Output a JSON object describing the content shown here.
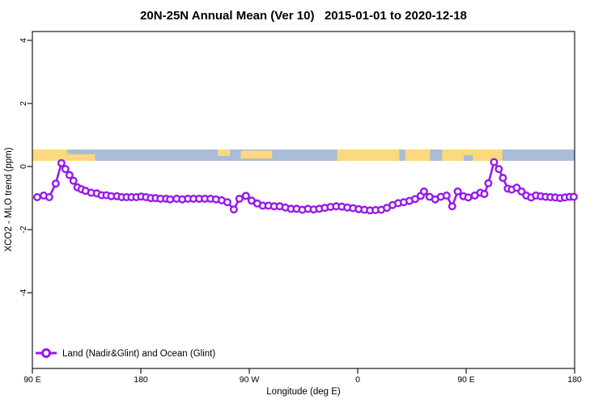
{
  "title": "20N-25N Annual Mean (Ver 10)   2015-01-01 to 2020-12-18",
  "axes": {
    "x": {
      "label": "Longitude (deg E)",
      "ticks": [
        {
          "lon": 90,
          "label": "90 E"
        },
        {
          "lon": 180,
          "label": "180"
        },
        {
          "lon": 270,
          "label": "90 W"
        },
        {
          "lon": 360,
          "label": "0"
        },
        {
          "lon": 450,
          "label": "90 E"
        },
        {
          "lon": 540,
          "label": "180"
        }
      ]
    },
    "y": {
      "label": "XCO2 - MLO trend (ppm)",
      "ticks": [
        {
          "value": 4,
          "label": "4"
        },
        {
          "value": 2,
          "label": "2"
        },
        {
          "value": 0,
          "label": "0"
        },
        {
          "value": -2,
          "label": "-2"
        },
        {
          "value": -4,
          "label": "-4"
        }
      ]
    }
  },
  "legend": {
    "label": "Land (Nadir&Glint) and Ocean (Glint)"
  },
  "colors": {
    "series": "#9719EC",
    "marker_fill": "#ffffff",
    "land": "#FCD87E",
    "ocean": "#A9BCD8",
    "axis": "#1a1a1a"
  },
  "chart_data": {
    "type": "line",
    "title": "20N-25N Annual Mean (Ver 10)   2015-01-01 to 2020-12-18",
    "xlabel": "Longitude (deg E)",
    "ylabel": "XCO2 - MLO trend (ppm)",
    "x_range": [
      90,
      540
    ],
    "y_range": [
      -6.4,
      4.28
    ],
    "x_tick_values": [
      90,
      180,
      270,
      360,
      450,
      540
    ],
    "y_tick_values": [
      4,
      2,
      0,
      -2,
      -4
    ],
    "grid": false,
    "legend_position": "bottom-left",
    "map_strip": {
      "comment": "land/ocean band for latitude 20N-25N drawn across the plot",
      "value_top": 0.54,
      "value_bottom": 0.18,
      "land_segments": [
        {
          "from": 90,
          "to": 119,
          "top": 0,
          "bottom": 1
        },
        {
          "from": 119,
          "to": 142,
          "top": 0.42,
          "bottom": 1
        },
        {
          "from": 244,
          "to": 254,
          "top": 0,
          "bottom": 0.55
        },
        {
          "from": 263,
          "to": 289,
          "top": 0.1,
          "bottom": 0.8
        },
        {
          "from": 343,
          "to": 394.5,
          "top": 0,
          "bottom": 1
        },
        {
          "from": 399.5,
          "to": 420,
          "top": 0,
          "bottom": 1
        },
        {
          "from": 430,
          "to": 480,
          "top": 0,
          "bottom": 1
        }
      ],
      "ocean_notches": [
        {
          "from": 448,
          "to": 455.5,
          "top": 0.5,
          "bottom": 1
        }
      ]
    },
    "series": [
      {
        "name": "Land (Nadir&Glint) and Ocean (Glint)",
        "marker": "open-circle",
        "color": "#9719EC",
        "points": [
          [
            94.0,
            -0.97
          ],
          [
            99.4,
            -0.92
          ],
          [
            104.0,
            -0.97
          ],
          [
            109.4,
            -0.54
          ],
          [
            114.1,
            0.11
          ],
          [
            117.4,
            -0.08
          ],
          [
            120.8,
            -0.27
          ],
          [
            124.1,
            -0.45
          ],
          [
            127.4,
            -0.66
          ],
          [
            130.8,
            -0.72
          ],
          [
            134.1,
            -0.77
          ],
          [
            138.8,
            -0.83
          ],
          [
            143.5,
            -0.85
          ],
          [
            147.5,
            -0.91
          ],
          [
            151.5,
            -0.91
          ],
          [
            155.5,
            -0.94
          ],
          [
            160.2,
            -0.94
          ],
          [
            164.2,
            -0.97
          ],
          [
            168.2,
            -0.97
          ],
          [
            172.2,
            -0.97
          ],
          [
            176.3,
            -0.97
          ],
          [
            180.3,
            -0.95
          ],
          [
            184.3,
            -0.97
          ],
          [
            188.3,
            -1.0
          ],
          [
            192.3,
            -1.0
          ],
          [
            196.3,
            -1.02
          ],
          [
            201.0,
            -1.02
          ],
          [
            204.3,
            -1.04
          ],
          [
            209.7,
            -1.02
          ],
          [
            214.4,
            -1.04
          ],
          [
            219.1,
            -1.02
          ],
          [
            223.7,
            -1.02
          ],
          [
            228.4,
            -1.02
          ],
          [
            233.1,
            -1.02
          ],
          [
            237.8,
            -1.02
          ],
          [
            242.4,
            -1.04
          ],
          [
            247.1,
            -1.07
          ],
          [
            251.8,
            -1.13
          ],
          [
            257.2,
            -1.36
          ],
          [
            261.8,
            -1.02
          ],
          [
            267.2,
            -0.93
          ],
          [
            271.9,
            -1.08
          ],
          [
            276.6,
            -1.17
          ],
          [
            281.2,
            -1.24
          ],
          [
            285.9,
            -1.24
          ],
          [
            290.6,
            -1.26
          ],
          [
            295.3,
            -1.26
          ],
          [
            300.0,
            -1.3
          ],
          [
            304.6,
            -1.34
          ],
          [
            309.3,
            -1.34
          ],
          [
            314.0,
            -1.37
          ],
          [
            318.7,
            -1.34
          ],
          [
            323.4,
            -1.36
          ],
          [
            328.1,
            -1.34
          ],
          [
            332.7,
            -1.31
          ],
          [
            337.4,
            -1.28
          ],
          [
            342.1,
            -1.26
          ],
          [
            346.8,
            -1.27
          ],
          [
            351.4,
            -1.3
          ],
          [
            356.1,
            -1.32
          ],
          [
            360.8,
            -1.35
          ],
          [
            365.5,
            -1.37
          ],
          [
            370.2,
            -1.39
          ],
          [
            374.8,
            -1.38
          ],
          [
            379.5,
            -1.37
          ],
          [
            384.2,
            -1.31
          ],
          [
            388.9,
            -1.22
          ],
          [
            393.6,
            -1.16
          ],
          [
            398.2,
            -1.13
          ],
          [
            402.9,
            -1.09
          ],
          [
            407.6,
            -1.03
          ],
          [
            412.3,
            -0.93
          ],
          [
            415.0,
            -0.79
          ],
          [
            419.6,
            -0.96
          ],
          [
            424.3,
            -1.04
          ],
          [
            429.0,
            -0.96
          ],
          [
            433.7,
            -0.92
          ],
          [
            438.4,
            -1.26
          ],
          [
            443.0,
            -0.79
          ],
          [
            447.7,
            -0.94
          ],
          [
            451.7,
            -0.98
          ],
          [
            457.1,
            -0.92
          ],
          [
            461.8,
            -0.83
          ],
          [
            465.1,
            -0.87
          ],
          [
            468.4,
            -0.53
          ],
          [
            473.1,
            0.14
          ],
          [
            477.1,
            -0.08
          ],
          [
            480.5,
            -0.36
          ],
          [
            484.5,
            -0.7
          ],
          [
            487.8,
            -0.73
          ],
          [
            491.9,
            -0.67
          ],
          [
            495.9,
            -0.79
          ],
          [
            499.9,
            -0.92
          ],
          [
            503.9,
            -0.98
          ],
          [
            507.9,
            -0.92
          ],
          [
            511.9,
            -0.94
          ],
          [
            515.9,
            -0.96
          ],
          [
            519.9,
            -0.97
          ],
          [
            523.9,
            -0.98
          ],
          [
            527.9,
            -1.0
          ],
          [
            531.9,
            -0.98
          ],
          [
            535.9,
            -0.96
          ],
          [
            539.3,
            -0.96
          ]
        ]
      }
    ]
  }
}
